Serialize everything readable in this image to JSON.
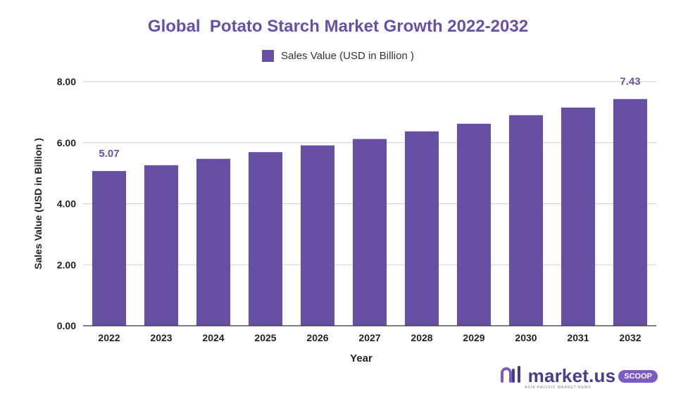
{
  "chart_data": {
    "type": "bar",
    "title": "Global  Potato Starch Market Growth 2022-2032",
    "xlabel": "Year",
    "ylabel": "Sales Value (USD in Billion )",
    "legend": [
      "Sales Value (USD in Billion )"
    ],
    "legend_position": "top-center",
    "categories": [
      "2022",
      "2023",
      "2024",
      "2025",
      "2026",
      "2027",
      "2028",
      "2029",
      "2030",
      "2031",
      "2032"
    ],
    "series": [
      {
        "name": "Sales Value (USD in Billion )",
        "values": [
          5.07,
          5.26,
          5.47,
          5.69,
          5.91,
          6.12,
          6.37,
          6.62,
          6.9,
          7.15,
          7.43
        ]
      }
    ],
    "data_labels": [
      {
        "category": "2022",
        "text": "5.07"
      },
      {
        "category": "2032",
        "text": "7.43"
      }
    ],
    "yticks": [
      "0.00",
      "2.00",
      "4.00",
      "6.00",
      "8.00"
    ],
    "ylim": [
      0,
      8
    ],
    "grid": true,
    "bar_color": "#6750a4",
    "label_color": "#6a4fa8"
  },
  "branding": {
    "logo_icon": "market-us-logo-icon",
    "name": "market.us",
    "badge": "SCOOP",
    "tagline": "ASIA-PACIFIC MARKET NEWS"
  }
}
